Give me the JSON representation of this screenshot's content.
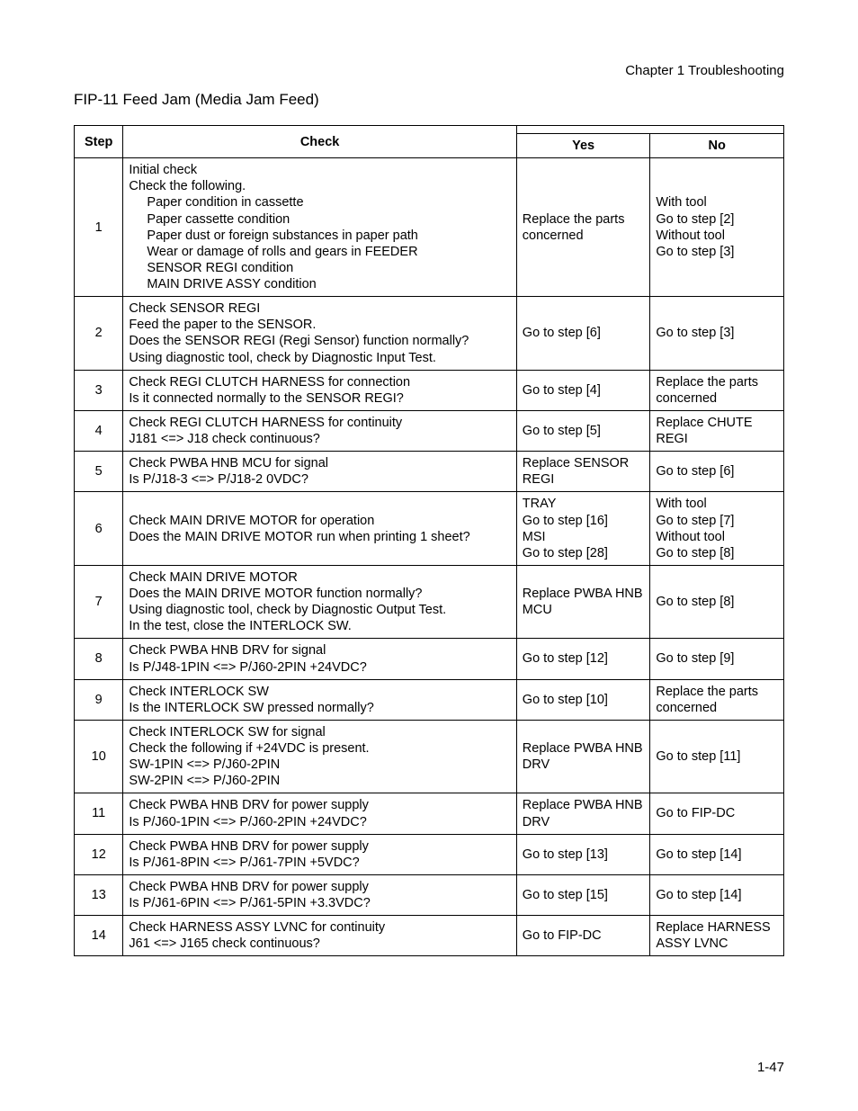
{
  "chapter_line": "Chapter 1  Troubleshooting",
  "title": "FIP-11 Feed Jam (Media Jam Feed)",
  "page_number": "1-47",
  "headers": {
    "step": "Step",
    "check": "Check",
    "yes": "Yes",
    "no": "No"
  },
  "rows": [
    {
      "step": "1",
      "check_pre": "Initial check\nCheck the following.",
      "check_indent": "Paper condition in cassette\nPaper cassette condition\nPaper dust or foreign substances in paper path\nWear or damage of rolls and gears in FEEDER\nSENSOR REGI condition\nMAIN DRIVE ASSY condition",
      "yes": "Replace the parts concerned",
      "no": "With tool\nGo to step [2]\nWithout tool\nGo to step [3]"
    },
    {
      "step": "2",
      "check_pre": "Check SENSOR REGI\nFeed the paper to the SENSOR.\nDoes the SENSOR REGI (Regi Sensor) function normally?\nUsing diagnostic tool, check by Diagnostic Input Test.",
      "yes": "Go to step [6]",
      "no": "Go to step [3]"
    },
    {
      "step": "3",
      "check_pre": "Check REGI CLUTCH HARNESS for connection\nIs it connected normally to the SENSOR REGI?",
      "yes": "Go to step [4]",
      "no": "Replace the parts concerned"
    },
    {
      "step": "4",
      "check_pre": "Check REGI CLUTCH HARNESS for continuity\nJ181 <=> J18 check continuous?",
      "yes": "Go to step [5]",
      "no": "Replace CHUTE REGI"
    },
    {
      "step": "5",
      "check_pre": "Check PWBA HNB MCU for signal\nIs P/J18-3 <=> P/J18-2 0VDC?",
      "yes": "Replace SENSOR REGI",
      "no": "Go to step [6]"
    },
    {
      "step": "6",
      "check_pre": "Check MAIN DRIVE MOTOR for operation\nDoes the MAIN DRIVE MOTOR run when printing 1 sheet?",
      "yes": "TRAY\nGo to step [16]\nMSI\nGo to step [28]",
      "no": "With tool\nGo to step [7]\nWithout tool\nGo to step [8]"
    },
    {
      "step": "7",
      "check_pre": "Check MAIN DRIVE MOTOR\nDoes the MAIN DRIVE MOTOR function normally?\nUsing diagnostic tool, check by Diagnostic Output Test.\nIn the test, close the INTERLOCK SW.",
      "yes": "Replace PWBA HNB MCU",
      "no": "Go to step [8]"
    },
    {
      "step": "8",
      "check_pre": "Check PWBA HNB DRV for signal\nIs P/J48-1PIN <=> P/J60-2PIN +24VDC?",
      "yes": "Go to step [12]",
      "no": "Go to step [9]"
    },
    {
      "step": "9",
      "check_pre": "Check INTERLOCK SW\nIs the INTERLOCK SW pressed normally?",
      "yes": "Go to step [10]",
      "no": "Replace the parts concerned"
    },
    {
      "step": "10",
      "check_pre": "Check INTERLOCK SW for signal\nCheck the following if +24VDC is present.\nSW-1PIN <=> P/J60-2PIN\nSW-2PIN <=> P/J60-2PIN",
      "yes": "Replace PWBA HNB DRV",
      "no": "Go to step [11]"
    },
    {
      "step": "11",
      "check_pre": "Check PWBA HNB DRV for power supply\nIs P/J60-1PIN <=> P/J60-2PIN +24VDC?",
      "yes": "Replace PWBA HNB DRV",
      "no": "Go to FIP-DC"
    },
    {
      "step": "12",
      "check_pre": "Check PWBA HNB DRV for power supply\nIs P/J61-8PIN <=> P/J61-7PIN +5VDC?",
      "yes": "Go to step [13]",
      "no": "Go to step [14]"
    },
    {
      "step": "13",
      "check_pre": "Check PWBA HNB DRV for power supply\nIs P/J61-6PIN <=> P/J61-5PIN +3.3VDC?",
      "yes": "Go to step [15]",
      "no": "Go to step [14]"
    },
    {
      "step": "14",
      "check_pre": "Check HARNESS ASSY LVNC for continuity\nJ61 <=> J165 check continuous?",
      "yes": "Go to FIP-DC",
      "no": "Replace HARNESS ASSY LVNC"
    }
  ]
}
